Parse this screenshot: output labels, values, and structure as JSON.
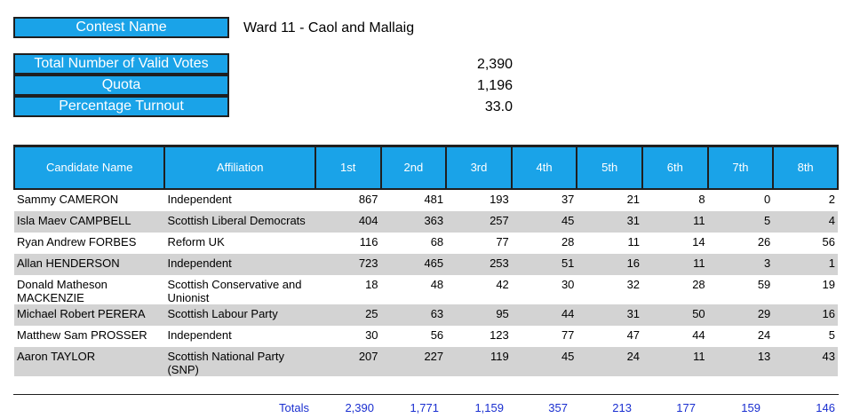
{
  "header": {
    "contest_label": "Contest Name",
    "contest_value": "Ward 11 - Caol and Mallaig",
    "valid_votes_label": "Total Number of Valid Votes",
    "valid_votes_value": "2,390",
    "quota_label": "Quota",
    "quota_value": "1,196",
    "turnout_label": "Percentage Turnout",
    "turnout_value": "33.0"
  },
  "table": {
    "columns": [
      "Candidate Name",
      "Affiliation",
      "1st",
      "2nd",
      "3rd",
      "4th",
      "5th",
      "6th",
      "7th",
      "8th"
    ],
    "rows": [
      {
        "name": "Sammy CAMERON",
        "affiliation": "Independent",
        "votes": [
          "867",
          "481",
          "193",
          "37",
          "21",
          "8",
          "0",
          "2"
        ]
      },
      {
        "name": "Isla Maev CAMPBELL",
        "affiliation": "Scottish Liberal Democrats",
        "votes": [
          "404",
          "363",
          "257",
          "45",
          "31",
          "11",
          "5",
          "4"
        ]
      },
      {
        "name": "Ryan Andrew FORBES",
        "affiliation": "Reform UK",
        "votes": [
          "116",
          "68",
          "77",
          "28",
          "11",
          "14",
          "26",
          "56"
        ]
      },
      {
        "name": "Allan HENDERSON",
        "affiliation": "Independent",
        "votes": [
          "723",
          "465",
          "253",
          "51",
          "16",
          "11",
          "3",
          "1"
        ]
      },
      {
        "name": "Donald Matheson MACKENZIE",
        "affiliation": "Scottish Conservative and Unionist",
        "votes": [
          "18",
          "48",
          "42",
          "30",
          "32",
          "28",
          "59",
          "19"
        ]
      },
      {
        "name": "Michael Robert PERERA",
        "affiliation": "Scottish Labour Party",
        "votes": [
          "25",
          "63",
          "95",
          "44",
          "31",
          "50",
          "29",
          "16"
        ]
      },
      {
        "name": "Matthew Sam PROSSER",
        "affiliation": "Independent",
        "votes": [
          "30",
          "56",
          "123",
          "77",
          "47",
          "44",
          "24",
          "5"
        ]
      },
      {
        "name": "Aaron TAYLOR",
        "affiliation": "Scottish National Party (SNP)",
        "votes": [
          "207",
          "227",
          "119",
          "45",
          "24",
          "11",
          "13",
          "43"
        ]
      }
    ],
    "totals_label": "Totals",
    "totals": [
      "2,390",
      "1,771",
      "1,159",
      "357",
      "213",
      "177",
      "159",
      "146"
    ]
  }
}
